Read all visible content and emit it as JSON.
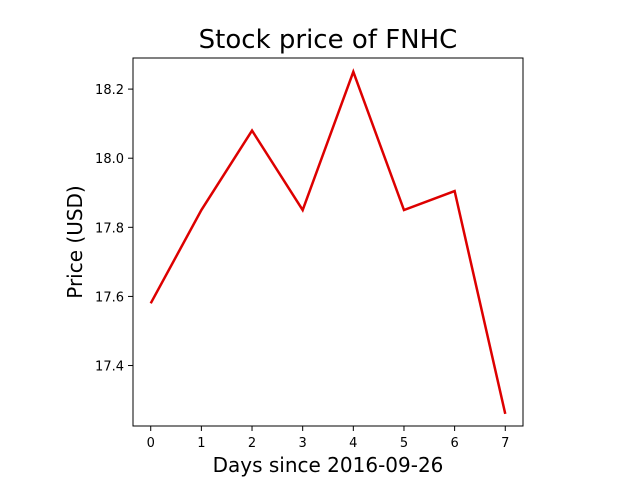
{
  "chart_data": {
    "type": "line",
    "title": "Stock price of FNHC",
    "xlabel": "Days since 2016-09-26",
    "ylabel": "Price (USD)",
    "x": [
      0,
      1,
      2,
      3,
      4,
      5,
      6,
      7
    ],
    "series": [
      {
        "values": [
          17.58,
          17.85,
          18.08,
          17.85,
          18.25,
          17.85,
          17.905,
          17.26
        ],
        "color": "#dd0000"
      }
    ],
    "xlim": [
      -0.35,
      7.35
    ],
    "ylim": [
      17.225,
      18.29
    ],
    "xticks": [
      0,
      1,
      2,
      3,
      4,
      5,
      6,
      7
    ],
    "yticks": [
      17.4,
      17.6,
      17.8,
      18.0,
      18.2
    ],
    "ytick_labels": [
      "17.4",
      "17.6",
      "17.8",
      "18.0",
      "18.2"
    ],
    "grid": false,
    "legend": false
  }
}
